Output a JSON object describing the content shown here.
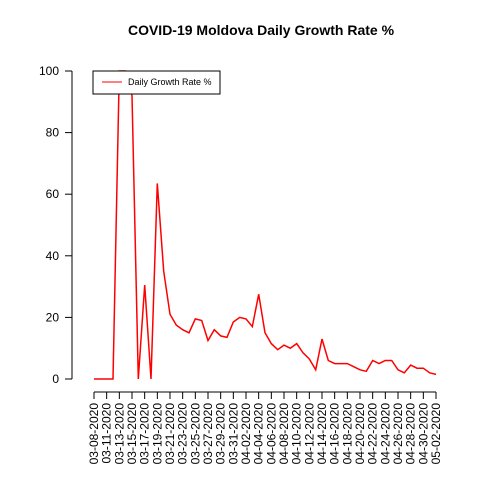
{
  "chart_data": {
    "type": "line",
    "title": "COVID-19 Moldova Daily Growth Rate %",
    "categories": [
      "03-08-2020",
      null,
      "03-11-2020",
      null,
      "03-13-2020",
      null,
      "03-15-2020",
      null,
      "03-17-2020",
      null,
      "03-19-2020",
      null,
      "03-21-2020",
      null,
      "03-23-2020",
      null,
      "03-25-2020",
      null,
      "03-27-2020",
      null,
      "03-29-2020",
      null,
      "03-31-2020",
      null,
      "04-02-2020",
      null,
      "04-04-2020",
      null,
      "04-06-2020",
      null,
      "04-08-2020",
      null,
      "04-10-2020",
      null,
      "04-12-2020",
      null,
      "04-14-2020",
      null,
      "04-16-2020",
      null,
      "04-18-2020",
      null,
      "04-20-2020",
      null,
      "04-22-2020",
      null,
      "04-24-2020",
      null,
      "04-26-2020",
      null,
      "04-28-2020",
      null,
      "04-30-2020",
      null,
      "05-02-2020"
    ],
    "series": [
      {
        "name": "Daily Growth Rate %",
        "color": "#ff0000",
        "values": [
          0,
          0,
          0,
          0,
          100,
          100,
          92,
          0,
          30.5,
          0,
          63.5,
          35,
          21,
          17.5,
          16,
          15,
          19.5,
          19,
          12.5,
          16,
          14,
          13.5,
          18.5,
          20,
          19.5,
          17,
          27.5,
          15,
          11.5,
          9.5,
          11,
          10,
          11.5,
          8.5,
          6.5,
          3,
          13,
          6,
          5,
          5,
          5,
          4,
          3,
          2.5,
          6,
          5,
          6,
          6,
          3,
          2,
          4.5,
          3.5,
          3.5,
          2,
          1.5
        ]
      }
    ],
    "ylim": [
      0,
      100
    ],
    "yticks": [
      0,
      20,
      40,
      60,
      80,
      100
    ],
    "legend": "top-left"
  }
}
